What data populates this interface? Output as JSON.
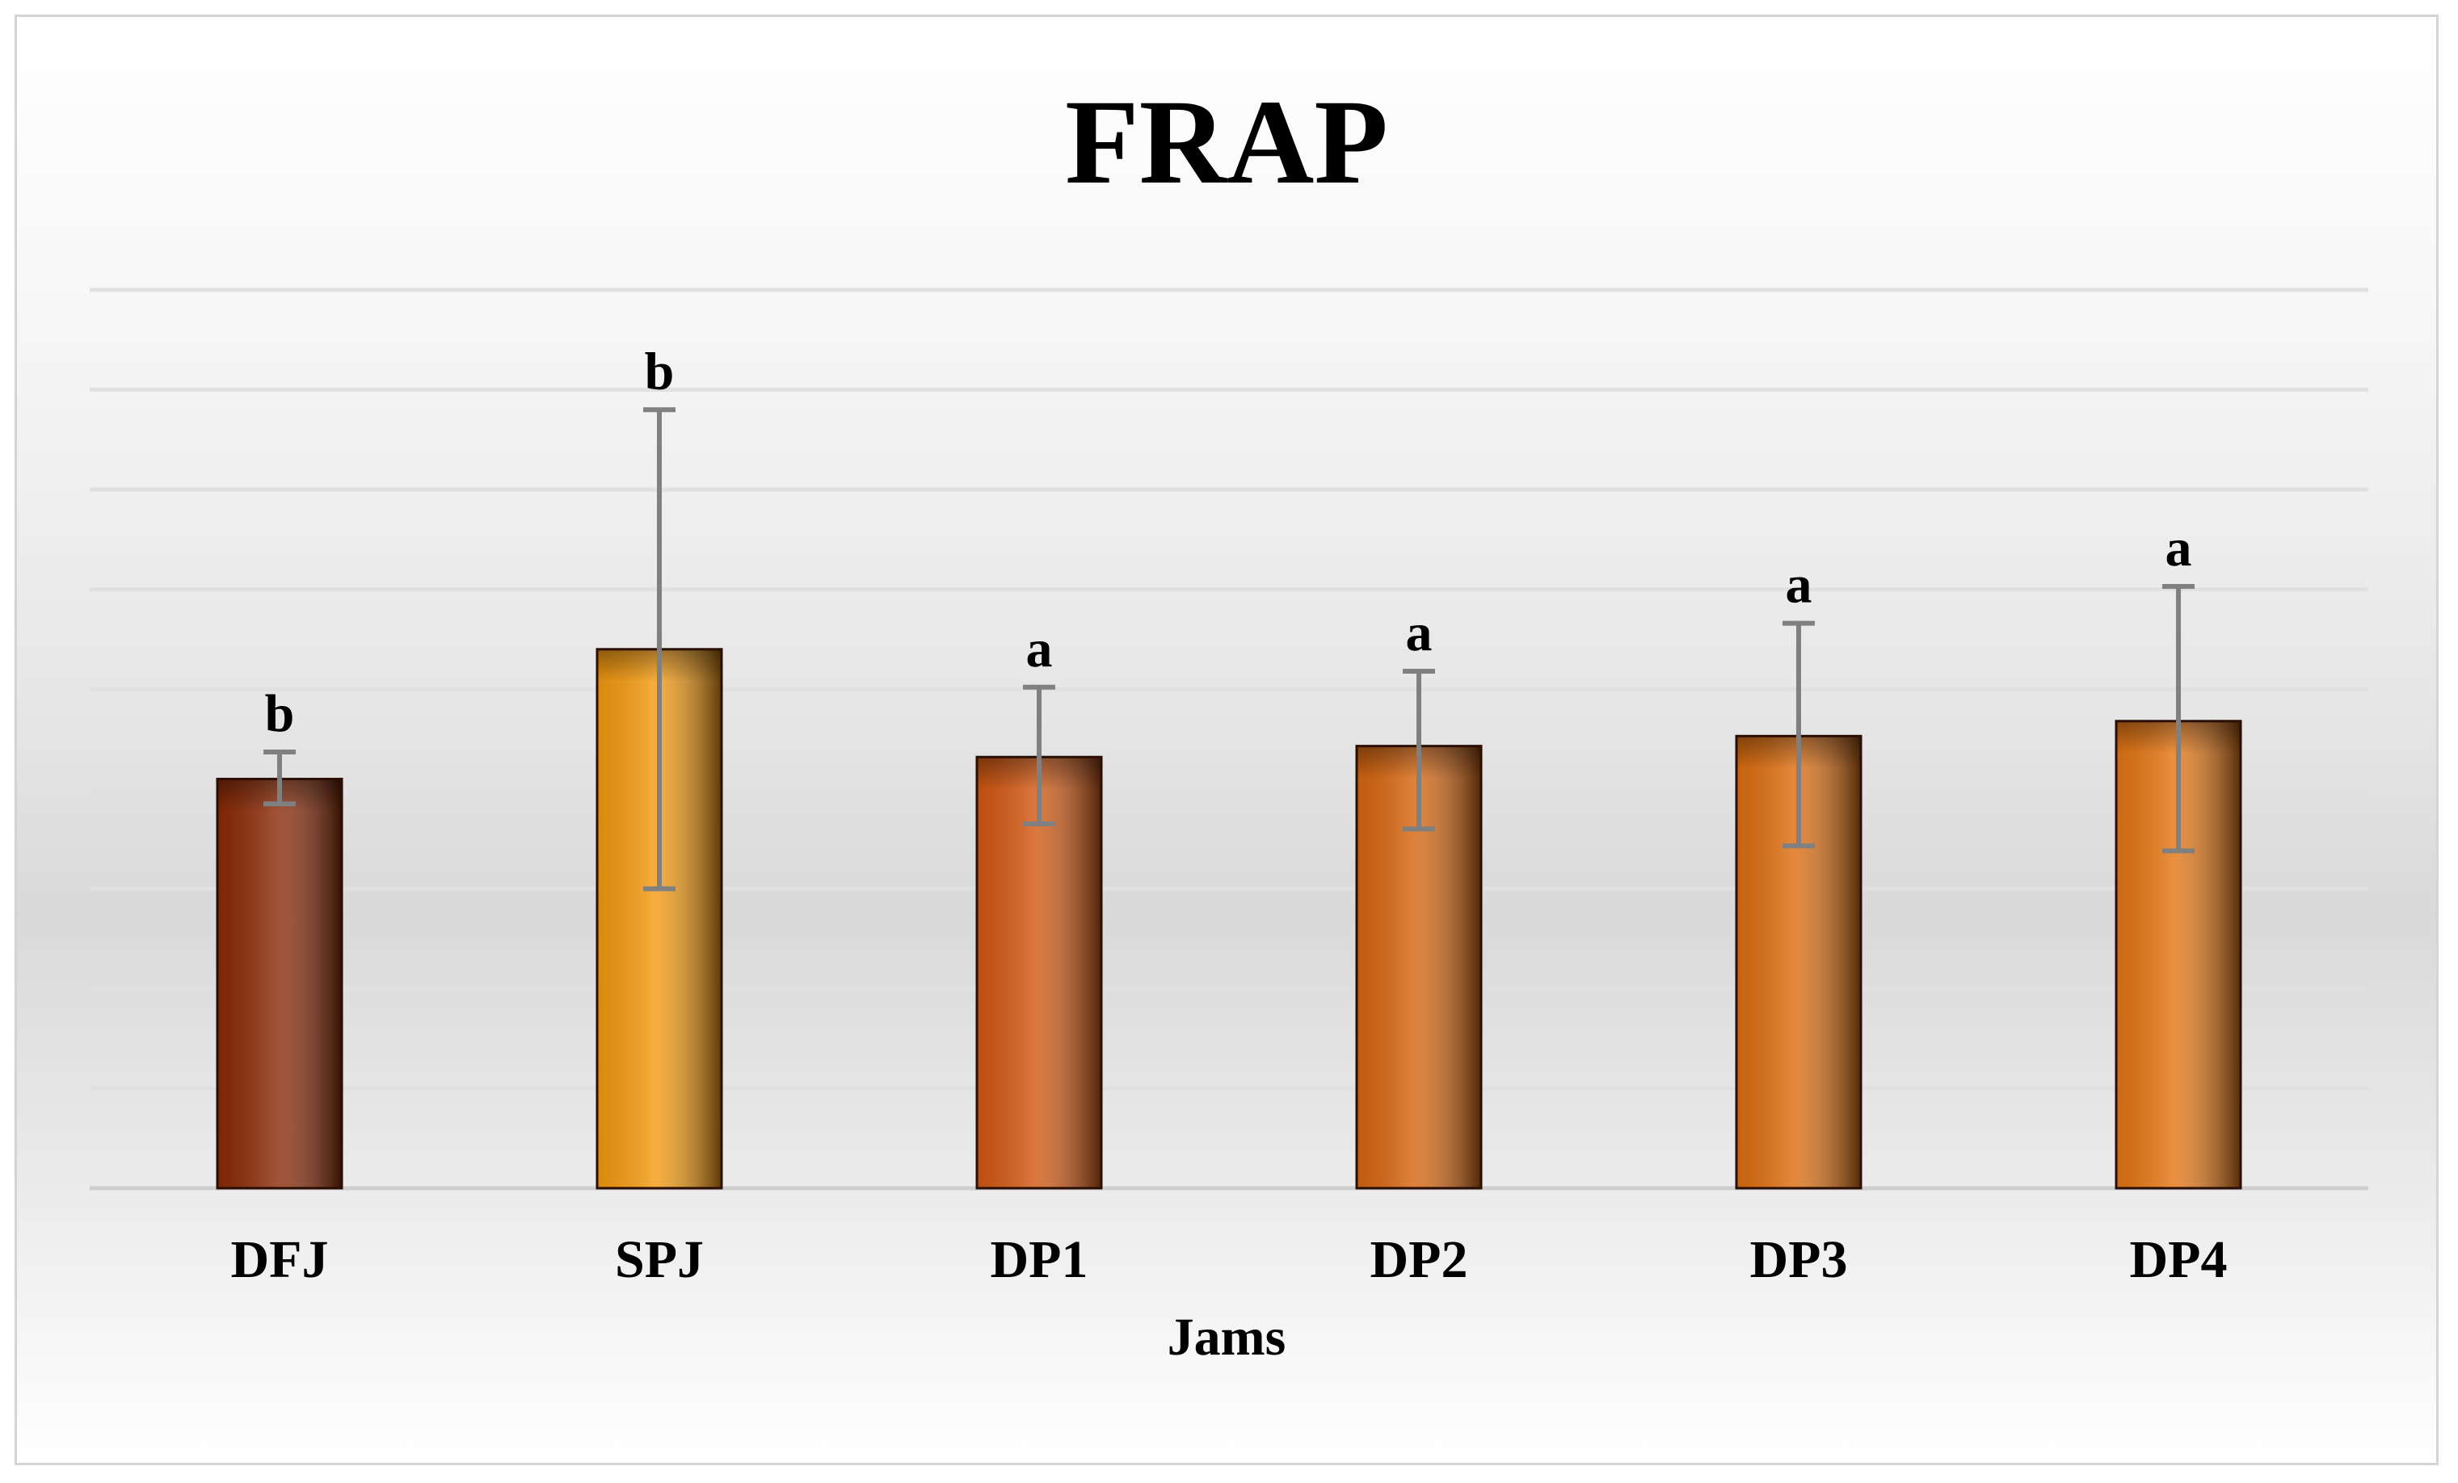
{
  "chart_data": {
    "type": "bar",
    "title": "FRAP",
    "xlabel": "Jams",
    "ylabel": "",
    "categories": [
      "DFJ",
      "SPJ",
      "DP1",
      "DP2",
      "DP3",
      "DP4"
    ],
    "values": [
      4.1,
      5.4,
      4.32,
      4.43,
      4.53,
      4.68
    ],
    "error_low": [
      0.25,
      2.4,
      0.67,
      0.83,
      1.1,
      1.3
    ],
    "error_high": [
      0.27,
      2.4,
      0.7,
      0.75,
      1.13,
      1.35
    ],
    "significance": [
      "b",
      "b",
      "a",
      "a",
      "a",
      "a"
    ],
    "bar_colors": [
      "#8a2a06",
      "#f49a10",
      "#d25812",
      "#d66610",
      "#dd6e10",
      "#e47614"
    ],
    "error_bar_color": "#808080",
    "ylim": [
      0,
      9
    ],
    "yticks": [
      0,
      1,
      2,
      3,
      4,
      5,
      6,
      7,
      8,
      9
    ],
    "grid": true,
    "legend": "none"
  }
}
